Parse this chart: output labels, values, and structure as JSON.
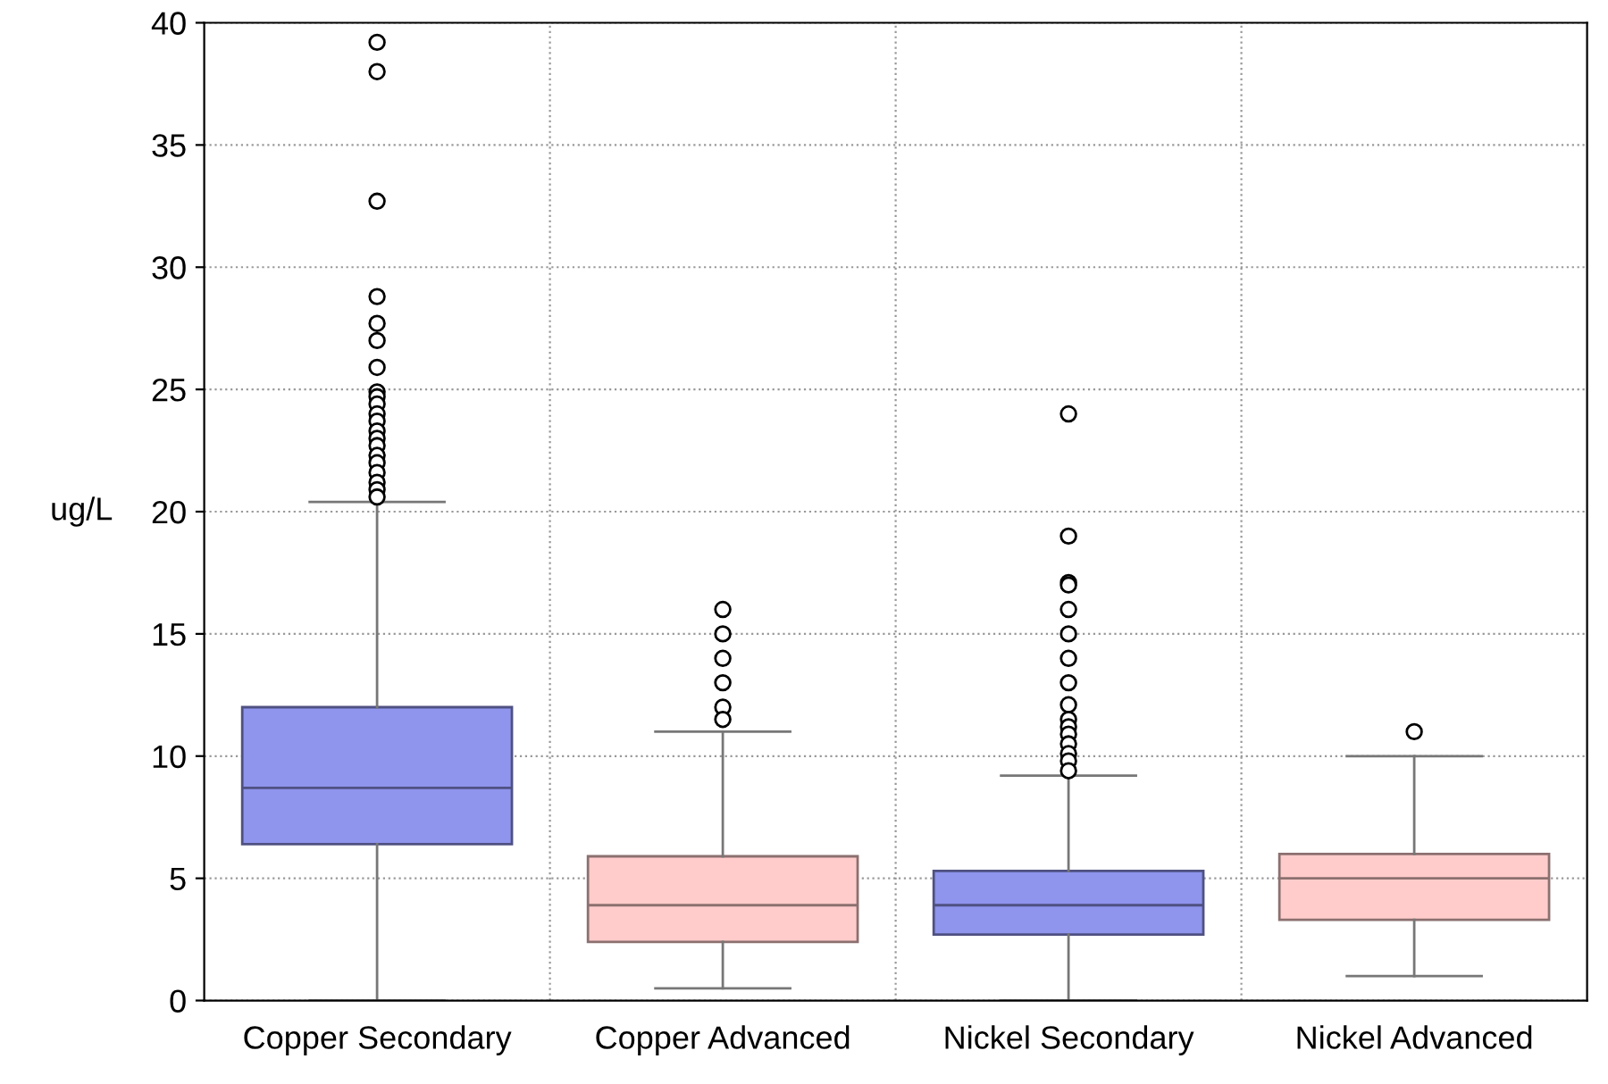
{
  "chart_data": {
    "type": "box",
    "ylabel": "ug/L",
    "categories": [
      "Copper Secondary",
      "Copper Advanced",
      "Nickel Secondary",
      "Nickel Advanced"
    ],
    "colors": [
      "#8f94ec",
      "#ffcccb",
      "#8f94ec",
      "#ffcccb"
    ],
    "boxes": [
      {
        "low": 0,
        "q1": 6.4,
        "median": 8.7,
        "q3": 12.0,
        "high": 20.4,
        "outliers": [
          39.2,
          38.0,
          32.7,
          28.8,
          27.7,
          27.0,
          25.9,
          24.9,
          24.7,
          24.4,
          24.0,
          23.7,
          23.3,
          23.0,
          22.7,
          22.3,
          22.0,
          21.6,
          21.2,
          20.9,
          20.6
        ]
      },
      {
        "low": 0.5,
        "q1": 2.4,
        "median": 3.9,
        "q3": 5.9,
        "high": 11.0,
        "outliers": [
          16,
          15,
          14,
          13,
          12,
          11.5
        ]
      },
      {
        "low": 0,
        "q1": 2.7,
        "median": 3.9,
        "q3": 5.3,
        "high": 9.2,
        "outliers": [
          24,
          19,
          17.1,
          17.0,
          16,
          15,
          14,
          13,
          12.1,
          11.5,
          11.2,
          10.9,
          10.5,
          10.1,
          9.8,
          9.4
        ]
      },
      {
        "low": 1,
        "q1": 3.3,
        "median": 5,
        "q3": 6,
        "high": 10,
        "outliers": [
          11
        ]
      }
    ],
    "ylim": [
      0,
      40
    ],
    "yticks": [
      0,
      5,
      10,
      15,
      20,
      25,
      30,
      35,
      40
    ],
    "grid": true
  }
}
